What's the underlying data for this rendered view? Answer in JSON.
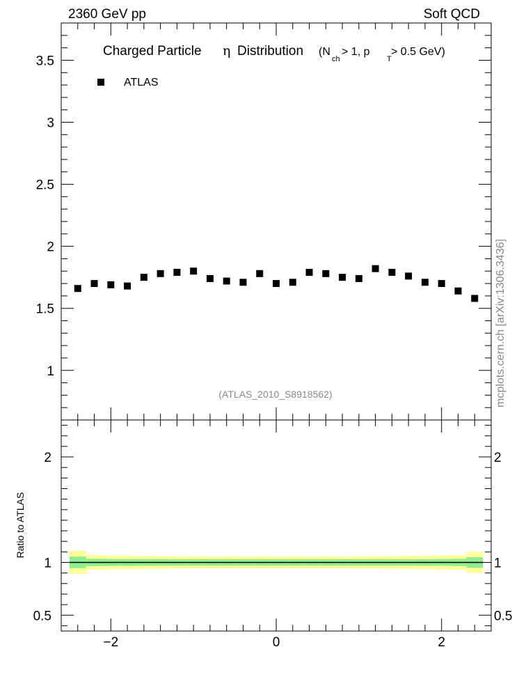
{
  "header": {
    "left": "2360 GeV pp",
    "right": "Soft QCD"
  },
  "title": {
    "prefix": "Charged Particle",
    "eta": "η",
    "suffix": "Distribution",
    "cut_open": "(N",
    "cut_sub1": "ch",
    "cut_mid": " > 1, p",
    "cut_sub2": "T",
    "cut_close": " > 0.5 GeV)"
  },
  "side_label": "mcplots.cern.ch [arXiv:1306.3436]",
  "analysis_tag": "(ATLAS_2010_S8918562)",
  "colors": {
    "marker": "#000000",
    "band_inner": "#90ee90",
    "band_outer": "#ffff99",
    "ratio_line": "#000000",
    "tag": "#888888"
  },
  "chart_data": [
    {
      "type": "scatter",
      "panel": "main",
      "xlim": [
        -2.6,
        2.6
      ],
      "ylim": [
        0.6,
        3.8
      ],
      "x_ticks": [
        -2,
        0,
        2
      ],
      "y_ticks": [
        1,
        1.5,
        2,
        2.5,
        3,
        3.5
      ],
      "y_tick_labels": [
        "1",
        "1.5",
        "2",
        "2.5",
        "3",
        "3.5"
      ],
      "legend": "top-left",
      "series": [
        {
          "name": "ATLAS",
          "marker": "square",
          "x": [
            -2.4,
            -2.2,
            -2.0,
            -1.8,
            -1.6,
            -1.4,
            -1.2,
            -1.0,
            -0.8,
            -0.6,
            -0.4,
            -0.2,
            0.0,
            0.2,
            0.4,
            0.6,
            0.8,
            1.0,
            1.2,
            1.4,
            1.6,
            1.8,
            2.0,
            2.2,
            2.4
          ],
          "y": [
            1.66,
            1.7,
            1.69,
            1.68,
            1.75,
            1.78,
            1.79,
            1.8,
            1.74,
            1.72,
            1.71,
            1.78,
            1.7,
            1.71,
            1.79,
            1.78,
            1.75,
            1.74,
            1.82,
            1.79,
            1.76,
            1.71,
            1.7,
            1.64,
            1.58
          ]
        }
      ]
    },
    {
      "type": "area",
      "panel": "ratio",
      "ylabel": "Ratio to ATLAS",
      "xlim": [
        -2.6,
        2.6
      ],
      "ylim": [
        0.35,
        2.35
      ],
      "x_ticks": [
        -2,
        0,
        2
      ],
      "x_tick_labels": [
        "−2",
        "0",
        "2"
      ],
      "y_ticks": [
        0.5,
        1,
        2
      ],
      "y_tick_labels": [
        "0.5",
        "1",
        "2"
      ],
      "bins": [
        -2.5,
        -2.3,
        -2.1,
        -1.9,
        -1.7,
        -1.5,
        -1.3,
        -1.1,
        -0.9,
        -0.7,
        -0.5,
        -0.3,
        -0.1,
        0.1,
        0.3,
        0.5,
        0.7,
        0.9,
        1.1,
        1.3,
        1.5,
        1.7,
        1.9,
        2.1,
        2.3,
        2.5
      ],
      "inner_band": [
        0.055,
        0.035,
        0.033,
        0.033,
        0.032,
        0.032,
        0.03,
        0.03,
        0.03,
        0.03,
        0.03,
        0.03,
        0.03,
        0.03,
        0.03,
        0.03,
        0.03,
        0.03,
        0.03,
        0.03,
        0.03,
        0.031,
        0.032,
        0.034,
        0.05
      ],
      "outer_band": [
        0.11,
        0.07,
        0.065,
        0.065,
        0.063,
        0.06,
        0.058,
        0.055,
        0.055,
        0.055,
        0.055,
        0.055,
        0.055,
        0.055,
        0.055,
        0.055,
        0.055,
        0.058,
        0.058,
        0.06,
        0.062,
        0.065,
        0.067,
        0.07,
        0.1
      ],
      "reference": 1.0
    }
  ]
}
